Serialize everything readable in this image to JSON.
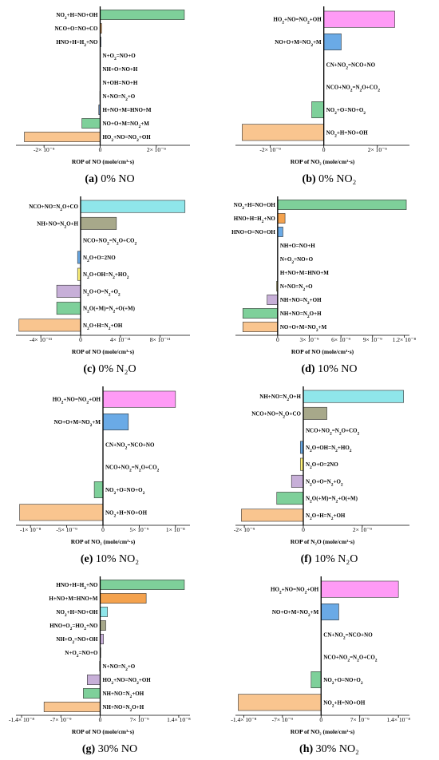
{
  "panel_labels": [
    "(a)",
    "(b)",
    "(c)",
    "(d)",
    "(e)",
    "(f)",
    "(g)",
    "(h)"
  ],
  "palette": [
    "#f9c58f",
    "#7ed09a",
    "#c7afd8",
    "#fff27a",
    "#7fa9dd",
    "#f4a24e",
    "#a7a88a",
    "#8fe6ea",
    "#ff9bf6",
    "#6aaae6"
  ],
  "chart_data": [
    {
      "type": "bar",
      "orientation": "horizontal",
      "caption_label": "(a)",
      "caption_text": "0% NO",
      "xlabel": "ROP of NO (mole/cm³·s)",
      "xlim": [
        -3e-09,
        3.2e-09
      ],
      "ticks": [
        -2e-09,
        0,
        2e-09
      ],
      "tick_labels": [
        "-2× 10⁻⁹",
        "0",
        "2× 10⁻⁹"
      ],
      "categories": [
        "NO2+H=NO+OH",
        "NCO+O=NO+CO",
        "HNO+H=H2+NO",
        "N+O2=NO+O",
        "NH+O=NO+H",
        "N+OH=NO+H",
        "N+NO=N2+O",
        "H+NO+M=HNO+M",
        "NO+O+M=NO2+M",
        "HO2+NO=NO2+OH"
      ],
      "values": [
        3e-09,
        5e-11,
        3e-11,
        0,
        0,
        0,
        -1e-11,
        -5e-11,
        -6.5e-10,
        -2.7e-09
      ],
      "colors": [
        "#7ed09a",
        "#f4a24e",
        "#7fa9dd",
        "#c7afd8",
        "#c7afd8",
        "#c7afd8",
        "#c7afd8",
        "#7fa9dd",
        "#7ed09a",
        "#f9c58f"
      ]
    },
    {
      "type": "bar",
      "orientation": "horizontal",
      "caption_label": "(b)",
      "caption_text": "0% NO₂",
      "xlabel": "ROP of NO₂ (mole/cm³·s)",
      "xlim": [
        -3.3e-09,
        3.2e-09
      ],
      "ticks": [
        -2e-09,
        0,
        2e-09
      ],
      "tick_labels": [
        "-2× 10⁻⁹",
        "0",
        "2× 10⁻⁹"
      ],
      "categories": [
        "HO2+NO=NO2+OH",
        "NO+O+M=NO2+M",
        "CN+NO2=NCO+NO",
        "NCO+NO2=N2O+CO2",
        "NO2+O=NO+O2",
        "NO2+H=NO+OH"
      ],
      "values": [
        2.65e-09,
        6.5e-10,
        0,
        0,
        -4.5e-10,
        -3.05e-09
      ],
      "colors": [
        "#ff9bf6",
        "#6aaae6",
        "#a7a88a",
        "#8fe6ea",
        "#7ed09a",
        "#f9c58f"
      ]
    },
    {
      "type": "bar",
      "orientation": "horizontal",
      "caption_label": "(c)",
      "caption_text": "0% N₂O",
      "xlabel": "ROP of NO (mole/cm³·s)",
      "xlim": [
        -6.5e-11,
        1.1e-10
      ],
      "ticks": [
        -4e-11,
        0,
        4e-11,
        8e-11
      ],
      "tick_labels": [
        "-4× 10⁻¹¹",
        "0",
        "4× 10⁻¹¹",
        "8× 10⁻¹¹"
      ],
      "categories": [
        "NCO+NO=N2O+CO",
        "NH+NO=N2O+H",
        "NCO+NO2=N2O+CO2",
        "N2O+O=2NO",
        "N2O+OH=N2+HO2",
        "N2O+O=N2+O2",
        "N2O(+M)=N2+O(+M)",
        "N2O+H=N2+OH"
      ],
      "values": [
        1.05e-10,
        3.6e-11,
        0,
        -3e-12,
        -3e-12,
        -2.4e-11,
        -2.4e-11,
        -6.2e-11
      ],
      "colors": [
        "#8fe6ea",
        "#a7a88a",
        "#f9c58f",
        "#6aaae6",
        "#fff27a",
        "#c7afd8",
        "#7ed09a",
        "#f9c58f"
      ]
    },
    {
      "type": "bar",
      "orientation": "horizontal",
      "caption_label": "(d)",
      "caption_text": "10% NO",
      "xlabel": "ROP of NO (mole/cm³·s)",
      "xlim": [
        -4e-09,
        1.25e-08
      ],
      "ticks": [
        0,
        3e-09,
        6e-09,
        9e-09,
        1.2e-08
      ],
      "tick_labels": [
        "0",
        "3× 10⁻⁹",
        "6× 10⁻⁹",
        "9× 10⁻⁹",
        "1.2× 10⁻⁸"
      ],
      "categories": [
        "NO2+H=NO+OH",
        "HNO+H=H2+NO",
        "HNO+O=NO+OH",
        "NH+O=NO+H",
        "N+O2=NO+O",
        "H+NO+M=HNO+M",
        "N+NO=N2+O",
        "NH+NO=N2+OH",
        "NH+NO=N2O+H",
        "NO+O+M=NO2+M"
      ],
      "values": [
        1.22e-08,
        7e-10,
        5e-10,
        0,
        0,
        0,
        -1e-10,
        -1e-09,
        -3.3e-09,
        -3.3e-09
      ],
      "colors": [
        "#7ed09a",
        "#f4a24e",
        "#6aaae6",
        "#c7afd8",
        "#c7afd8",
        "#c7afd8",
        "#fff27a",
        "#c7afd8",
        "#7ed09a",
        "#f9c58f"
      ]
    },
    {
      "type": "bar",
      "orientation": "horizontal",
      "caption_label": "(e)",
      "caption_text": "10% NO₂",
      "xlabel": "ROP of NO₂ (mole/cm³·s)",
      "xlim": [
        -1.2e-08,
        1.2e-08
      ],
      "ticks": [
        -1e-08,
        -5e-09,
        0,
        5e-09,
        1e-08
      ],
      "tick_labels": [
        "-1× 10⁻⁸",
        "-5× 10⁻⁹",
        "0",
        "5× 10⁻⁹",
        "1× 10⁻⁸"
      ],
      "categories": [
        "HO2+NO=NO2+OH",
        "NO+O+M=NO2+M",
        "CN+NO2=NCO+NO",
        "NCO+NO2=N2O+CO2",
        "NO2+O=NO+O2",
        "NO2+H=NO+OH"
      ],
      "values": [
        1e-08,
        3.5e-09,
        0,
        0,
        -1.2e-09,
        -1.15e-08
      ],
      "colors": [
        "#ff9bf6",
        "#6aaae6",
        "#a7a88a",
        "#8fe6ea",
        "#7ed09a",
        "#f9c58f"
      ]
    },
    {
      "type": "bar",
      "orientation": "horizontal",
      "caption_label": "(f)",
      "caption_text": "10% N₂O",
      "xlabel": "ROP of N₂O (mole/cm³·s)",
      "xlim": [
        -2.3e-09,
        3.6e-09
      ],
      "ticks": [
        -2e-09,
        0,
        2e-09
      ],
      "tick_labels": [
        "-2× 10⁻⁹",
        "0",
        "2× 10⁻⁹"
      ],
      "categories": [
        "NH+NO=N2O+H",
        "NCO+NO=N2O+CO",
        "NCO+NO2=N2O+CO2",
        "N2O+OH=N2+HO2",
        "N2O+O=2NO",
        "N2O+O=N2+O2",
        "N2O(+M)=N2+O(+M)",
        "N2O+H=N2+OH"
      ],
      "values": [
        3.4e-09,
        8e-10,
        0,
        -1e-10,
        -1e-10,
        -4e-10,
        -9e-10,
        -2.1e-09
      ],
      "colors": [
        "#8fe6ea",
        "#a7a88a",
        "#f9c58f",
        "#6aaae6",
        "#fff27a",
        "#c7afd8",
        "#7ed09a",
        "#f9c58f"
      ]
    },
    {
      "type": "bar",
      "orientation": "horizontal",
      "caption_label": "(g)",
      "caption_text": "30% NO",
      "xlabel": "ROP of NO (mole/cm³·s)",
      "xlim": [
        -1.5e-08,
        1.6e-08
      ],
      "ticks": [
        -1.4e-08,
        -7e-09,
        0,
        7e-09,
        1.4e-08
      ],
      "tick_labels": [
        "-1.4× 10⁻⁸",
        "-7× 10⁻⁹",
        "0",
        "7× 10⁻⁹",
        "1.4× 10⁻⁸"
      ],
      "categories": [
        "HNO+H=H2+NO",
        "H+NO+M=HNO+M",
        "NO2+H=NO+OH",
        "HNO+O2=HO2+NO",
        "NH+O2=NO+OH",
        "N+O2=NO+O",
        "N+NO=N2+O",
        "HO2+NO=NO2+OH",
        "NH+NO=N2+OH",
        "NH+NO=N2O+H"
      ],
      "values": [
        1.5e-08,
        8.2e-09,
        1.3e-09,
        1e-09,
        6e-10,
        1e-10,
        -1e-10,
        -2.3e-09,
        -3e-09,
        -1e-08
      ],
      "colors": [
        "#7ed09a",
        "#f4a24e",
        "#8fe6ea",
        "#a7a88a",
        "#c7afd8",
        "#fff27a",
        "#fff27a",
        "#c7afd8",
        "#7ed09a",
        "#f9c58f"
      ]
    },
    {
      "type": "bar",
      "orientation": "horizontal",
      "caption_label": "(h)",
      "caption_text": "30% NO₂",
      "xlabel": "ROP of NO₂ (mole/cm³·s)",
      "xlim": [
        -1.55e-08,
        1.6e-08
      ],
      "ticks": [
        -1.4e-08,
        -7e-09,
        0,
        7e-09,
        1.4e-08
      ],
      "tick_labels": [
        "-1.4× 10⁻⁸",
        "-7× 10⁻⁹",
        "0",
        "7× 10⁻⁹",
        "1.4× 10⁻⁸"
      ],
      "categories": [
        "HO2+NO=NO2+OH",
        "NO+O+M=NO2+M",
        "CN+NO2=NCO+NO",
        "NCO+NO2=N2O+CO2",
        "NO2+O=NO+O2",
        "NO2+H=NO+OH"
      ],
      "values": [
        1.4e-08,
        3.2e-09,
        0,
        0,
        -1.8e-09,
        -1.5e-08
      ],
      "colors": [
        "#ff9bf6",
        "#6aaae6",
        "#a7a88a",
        "#8fe6ea",
        "#7ed09a",
        "#f9c58f"
      ]
    }
  ]
}
